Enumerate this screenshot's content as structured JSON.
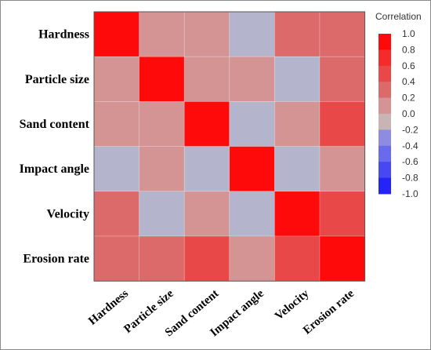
{
  "chart_data": {
    "type": "heatmap",
    "variables": [
      "Hardness",
      "Particle size",
      "Sand content",
      "Impact angle",
      "Velocity",
      "Erosion rate"
    ],
    "matrix": [
      [
        1.0,
        0.2,
        0.2,
        -0.1,
        0.4,
        0.4
      ],
      [
        0.2,
        1.0,
        0.2,
        0.2,
        -0.1,
        0.4
      ],
      [
        0.2,
        0.2,
        1.0,
        -0.1,
        0.2,
        0.6
      ],
      [
        -0.1,
        0.2,
        -0.1,
        1.0,
        -0.1,
        0.2
      ],
      [
        0.4,
        -0.1,
        0.2,
        -0.1,
        1.0,
        0.6
      ],
      [
        0.4,
        0.4,
        0.6,
        0.2,
        0.6,
        1.0
      ]
    ],
    "legend": {
      "title": "Correlation",
      "ticks": [
        "1.0",
        "0.8",
        "0.6",
        "0.4",
        "0.2",
        "0.0",
        "-0.2",
        "-0.4",
        "-0.6",
        "-0.8",
        "-1.0"
      ],
      "colors": {
        "positive": [
          "#ff0a0a",
          "#f52a2a",
          "#e84848",
          "#dc6a6a",
          "#d49494",
          "#c8b4b4"
        ],
        "negative": [
          "#b4b4cc",
          "#8c8ce0",
          "#6a6aec",
          "#4848f2",
          "#2424f8"
        ]
      },
      "placement": "right"
    }
  }
}
